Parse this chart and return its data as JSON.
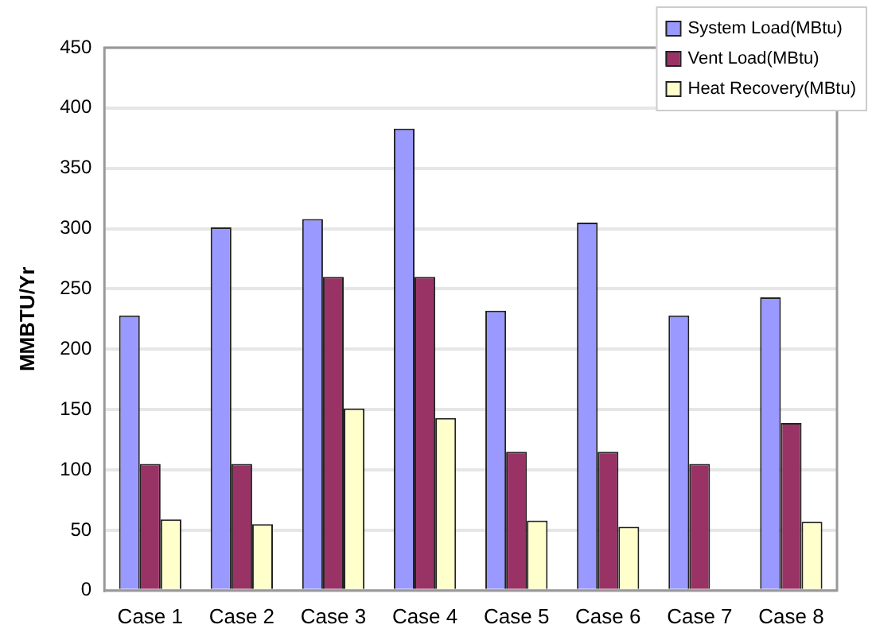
{
  "chart_data": {
    "type": "bar",
    "ylabel": "MMBTU/Yr",
    "categories": [
      "Case 1",
      "Case 2",
      "Case 3",
      "Case 4",
      "Case 5",
      "Case 6",
      "Case 7",
      "Case 8"
    ],
    "series": [
      {
        "name": "System Load(MBtu)",
        "color": "#9999ff",
        "values": [
          228,
          301,
          308,
          383,
          232,
          305,
          228,
          243
        ]
      },
      {
        "name": "Vent Load(MBtu)",
        "color": "#993366",
        "values": [
          105,
          105,
          260,
          260,
          115,
          115,
          105,
          139
        ]
      },
      {
        "name": "Heat Recovery(MBtu)",
        "color": "#ffffcc",
        "values": [
          59,
          55,
          151,
          143,
          58,
          53,
          null,
          57
        ]
      }
    ],
    "ylim": [
      0,
      450
    ],
    "yticks": [
      0,
      50,
      100,
      150,
      200,
      250,
      300,
      350,
      400,
      450
    ],
    "grid": "y",
    "legend": "top right"
  }
}
